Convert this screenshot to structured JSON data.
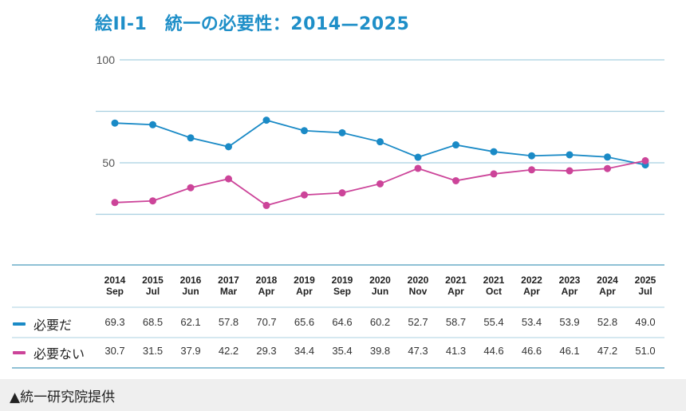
{
  "title": "絵II-1　統一の必要性：2014—2025",
  "source": "▲統一研究院提供",
  "colors": {
    "necessary": "#1a8ac6",
    "not_necessary": "#cc4499",
    "title": "#1f8fc8",
    "grid": "#a8d0e0"
  },
  "chart_data": {
    "type": "line",
    "title": "統一の必要性：2014—2025",
    "xlabel": "",
    "ylabel": "",
    "ylim": [
      0,
      100
    ],
    "yticks": [
      {
        "value": 100,
        "label": "100"
      },
      {
        "value": 75,
        "label": ""
      },
      {
        "value": 50,
        "label": "50"
      },
      {
        "value": 25,
        "label": ""
      }
    ],
    "grid": true,
    "categories": [
      {
        "year": "2014",
        "month": "Sep"
      },
      {
        "year": "2015",
        "month": "Jul"
      },
      {
        "year": "2016",
        "month": "Jun"
      },
      {
        "year": "2017",
        "month": "Mar"
      },
      {
        "year": "2018",
        "month": "Apr"
      },
      {
        "year": "2019",
        "month": "Apr"
      },
      {
        "year": "2019",
        "month": "Sep"
      },
      {
        "year": "2020",
        "month": "Jun"
      },
      {
        "year": "2020",
        "month": "Nov"
      },
      {
        "year": "2021",
        "month": "Apr"
      },
      {
        "year": "2021",
        "month": "Oct"
      },
      {
        "year": "2022",
        "month": "Apr"
      },
      {
        "year": "2023",
        "month": "Apr"
      },
      {
        "year": "2024",
        "month": "Apr"
      },
      {
        "year": "2025",
        "month": "Jul"
      }
    ],
    "series": [
      {
        "name": "必要だ",
        "color": "#1a8ac6",
        "values": [
          69.3,
          68.5,
          62.1,
          57.8,
          70.7,
          65.6,
          64.6,
          60.2,
          52.7,
          58.7,
          55.4,
          53.4,
          53.9,
          52.8,
          49.0
        ],
        "labels": [
          "69.3",
          "68.5",
          "62.1",
          "57.8",
          "70.7",
          "65.6",
          "64.6",
          "60.2",
          "52.7",
          "58.7",
          "55.4",
          "53.4",
          "53.9",
          "52.8",
          "49.0"
        ]
      },
      {
        "name": "必要ない",
        "color": "#cc4499",
        "values": [
          30.7,
          31.5,
          37.9,
          42.2,
          29.3,
          34.4,
          35.4,
          39.8,
          47.3,
          41.3,
          44.6,
          46.6,
          46.1,
          47.2,
          51.0
        ],
        "labels": [
          "30.7",
          "31.5",
          "37.9",
          "42.2",
          "29.3",
          "34.4",
          "35.4",
          "39.8",
          "47.3",
          "41.3",
          "44.6",
          "46.6",
          "46.1",
          "47.2",
          "51.0"
        ]
      }
    ],
    "legend": "left-table"
  }
}
